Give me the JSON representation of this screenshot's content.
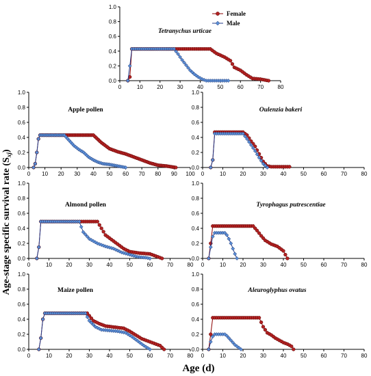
{
  "figure": {
    "ylabel_main": "Age-stage specific survival rate (S",
    "ylabel_sub": "xj",
    "ylabel_close": ")",
    "xlabel": "Age (d)"
  },
  "legend": {
    "female": "Female",
    "male": "Male"
  },
  "colors": {
    "female": "#b22222",
    "male": "#5b8fd6"
  },
  "chart_data": [
    {
      "id": "tetranychus",
      "type": "line",
      "title": "Tetranychus urticae",
      "title_italic": true,
      "xlim": [
        0,
        80
      ],
      "ylim": [
        0,
        1.0
      ],
      "xticks": [
        0,
        10,
        20,
        30,
        40,
        50,
        60,
        70,
        80
      ],
      "yticks": [
        0.0,
        0.2,
        0.4,
        0.6,
        0.8,
        1.0
      ],
      "series": [
        {
          "name": "Female",
          "x": [
            4,
            5,
            6,
            29,
            45,
            48,
            52,
            55,
            57,
            60,
            63,
            66,
            70,
            74
          ],
          "y": [
            0,
            0.05,
            0.43,
            0.43,
            0.43,
            0.37,
            0.32,
            0.27,
            0.18,
            0.14,
            0.08,
            0.03,
            0.02,
            0
          ]
        },
        {
          "name": "Male",
          "x": [
            4,
            5,
            6,
            27,
            29,
            31,
            33,
            35,
            37,
            39,
            41,
            42,
            43,
            54
          ],
          "y": [
            0,
            0.2,
            0.43,
            0.43,
            0.36,
            0.28,
            0.21,
            0.14,
            0.09,
            0.05,
            0.02,
            0.01,
            0,
            0
          ]
        }
      ]
    },
    {
      "id": "apple",
      "type": "line",
      "title": "Apple pollen",
      "title_italic": false,
      "xlim": [
        0,
        100
      ],
      "ylim": [
        0,
        1.0
      ],
      "xticks": [
        0,
        10,
        20,
        30,
        40,
        50,
        60,
        70,
        80,
        90,
        100
      ],
      "yticks": [
        0.0,
        0.2,
        0.4,
        0.6,
        0.8,
        1.0
      ],
      "series": [
        {
          "name": "Female",
          "x": [
            3,
            4,
            5,
            6,
            7,
            40,
            45,
            50,
            55,
            60,
            65,
            70,
            75,
            80,
            85,
            88,
            91
          ],
          "y": [
            0,
            0.05,
            0.2,
            0.38,
            0.43,
            0.43,
            0.33,
            0.25,
            0.21,
            0.18,
            0.14,
            0.1,
            0.06,
            0.03,
            0.02,
            0.01,
            0
          ]
        },
        {
          "name": "Male",
          "x": [
            3,
            4,
            5,
            6,
            7,
            22,
            25,
            28,
            31,
            34,
            37,
            40,
            43,
            46,
            50,
            55,
            60
          ],
          "y": [
            0,
            0.05,
            0.2,
            0.38,
            0.43,
            0.43,
            0.36,
            0.29,
            0.24,
            0.2,
            0.14,
            0.1,
            0.07,
            0.05,
            0.04,
            0.02,
            0
          ]
        }
      ]
    },
    {
      "id": "oulenzia",
      "type": "line",
      "title": "Oulenzia bakeri",
      "title_italic": true,
      "xlim": [
        0,
        80
      ],
      "ylim": [
        0,
        1.0
      ],
      "xticks": [
        0,
        10,
        20,
        30,
        40,
        50,
        60,
        70,
        80
      ],
      "yticks": [
        0.0,
        0.2,
        0.4,
        0.6,
        0.8,
        1.0
      ],
      "series": [
        {
          "name": "Female",
          "x": [
            4,
            5,
            6,
            20,
            22,
            24,
            26,
            28,
            30,
            32,
            34,
            43
          ],
          "y": [
            0,
            0.1,
            0.47,
            0.47,
            0.43,
            0.35,
            0.28,
            0.18,
            0.08,
            0.02,
            0.01,
            0.01
          ]
        },
        {
          "name": "Male",
          "x": [
            4,
            5,
            6,
            20,
            22,
            24,
            26,
            28,
            30,
            32
          ],
          "y": [
            0,
            0.1,
            0.45,
            0.45,
            0.38,
            0.3,
            0.22,
            0.13,
            0.05,
            0
          ]
        }
      ]
    },
    {
      "id": "almond",
      "type": "line",
      "title": "Almond pollen",
      "title_italic": false,
      "xlim": [
        0,
        80
      ],
      "ylim": [
        0,
        1.0
      ],
      "xticks": [
        0,
        10,
        20,
        30,
        40,
        50,
        60,
        70,
        80
      ],
      "yticks": [
        0.0,
        0.2,
        0.4,
        0.6,
        0.8,
        1.0
      ],
      "series": [
        {
          "name": "Female",
          "x": [
            4,
            5,
            6,
            34,
            36,
            38,
            41,
            44,
            47,
            50,
            55,
            60,
            63,
            66
          ],
          "y": [
            0,
            0.15,
            0.49,
            0.49,
            0.4,
            0.31,
            0.25,
            0.19,
            0.13,
            0.09,
            0.07,
            0.06,
            0.03,
            0
          ]
        },
        {
          "name": "Male",
          "x": [
            4,
            5,
            6,
            25,
            27,
            30,
            34,
            38,
            42,
            46,
            50,
            54,
            58,
            60
          ],
          "y": [
            0,
            0.15,
            0.49,
            0.49,
            0.35,
            0.26,
            0.2,
            0.16,
            0.13,
            0.08,
            0.05,
            0.02,
            0.01,
            0
          ]
        }
      ]
    },
    {
      "id": "tyrophagus",
      "type": "line",
      "title": "Tyrophagus putrescentiae",
      "title_italic": true,
      "xlim": [
        0,
        80
      ],
      "ylim": [
        0,
        1.0
      ],
      "xticks": [
        0,
        10,
        20,
        30,
        40,
        50,
        60,
        70,
        80
      ],
      "yticks": [
        0.0,
        0.2,
        0.4,
        0.6,
        0.8,
        1.0
      ],
      "series": [
        {
          "name": "Female",
          "x": [
            3,
            4,
            5,
            25,
            27,
            29,
            31,
            34,
            37,
            40,
            42
          ],
          "y": [
            0,
            0.2,
            0.43,
            0.43,
            0.37,
            0.3,
            0.24,
            0.19,
            0.16,
            0.1,
            0
          ]
        },
        {
          "name": "Male",
          "x": [
            3,
            4,
            5,
            6,
            11,
            12,
            13,
            14,
            15,
            16,
            17
          ],
          "y": [
            0,
            0.15,
            0.29,
            0.34,
            0.34,
            0.31,
            0.26,
            0.2,
            0.13,
            0.06,
            0
          ]
        }
      ]
    },
    {
      "id": "maize",
      "type": "line",
      "title": "Maize pollen",
      "title_italic": false,
      "xlim": [
        0,
        80
      ],
      "ylim": [
        0,
        1.0
      ],
      "xticks": [
        0,
        10,
        20,
        30,
        40,
        50,
        60,
        70,
        80
      ],
      "yticks": [
        0.0,
        0.2,
        0.4,
        0.6,
        0.8,
        1.0
      ],
      "series": [
        {
          "name": "Female",
          "x": [
            5,
            6,
            7,
            8,
            29,
            32,
            35,
            38,
            41,
            44,
            47,
            50,
            53,
            56,
            59,
            62,
            65,
            67
          ],
          "y": [
            0,
            0.15,
            0.4,
            0.48,
            0.48,
            0.38,
            0.34,
            0.31,
            0.3,
            0.29,
            0.28,
            0.24,
            0.19,
            0.14,
            0.11,
            0.08,
            0.05,
            0
          ]
        },
        {
          "name": "Male",
          "x": [
            5,
            6,
            7,
            8,
            28,
            30,
            33,
            36,
            40,
            44,
            48,
            51,
            54,
            57,
            60
          ],
          "y": [
            0,
            0.15,
            0.4,
            0.48,
            0.48,
            0.38,
            0.3,
            0.26,
            0.25,
            0.24,
            0.22,
            0.17,
            0.11,
            0.05,
            0
          ]
        }
      ]
    },
    {
      "id": "aleuroglyphus",
      "type": "line",
      "title": "Aleuroglyphus ovatus",
      "title_italic": true,
      "xlim": [
        0,
        80
      ],
      "ylim": [
        0,
        1.0
      ],
      "xticks": [
        0,
        10,
        20,
        30,
        40,
        50,
        60,
        70,
        80
      ],
      "yticks": [
        0.0,
        0.2,
        0.4,
        0.6,
        0.8,
        1.0
      ],
      "series": [
        {
          "name": "Female",
          "x": [
            3,
            4,
            5,
            28,
            30,
            32,
            34,
            36,
            38,
            40,
            42,
            44,
            45
          ],
          "y": [
            0,
            0.2,
            0.42,
            0.42,
            0.3,
            0.22,
            0.19,
            0.15,
            0.12,
            0.09,
            0.07,
            0.04,
            0
          ]
        },
        {
          "name": "Male",
          "x": [
            3,
            4,
            5,
            6,
            11,
            12,
            13,
            14,
            15,
            16,
            17,
            18,
            19
          ],
          "y": [
            0,
            0.1,
            0.17,
            0.2,
            0.2,
            0.18,
            0.15,
            0.12,
            0.09,
            0.06,
            0.04,
            0.02,
            0
          ]
        }
      ]
    }
  ]
}
